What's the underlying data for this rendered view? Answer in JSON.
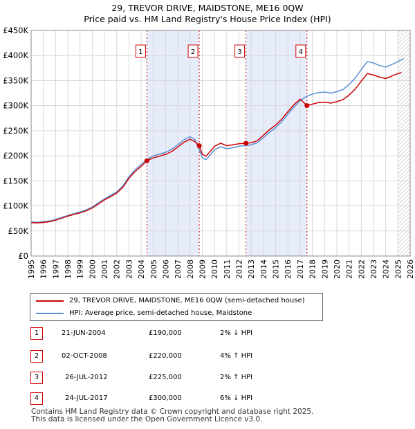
{
  "title_line1": "29, TREVOR DRIVE, MAIDSTONE, ME16 0QW",
  "title_line2": "Price paid vs. HM Land Registry's House Price Index (HPI)",
  "legend": {
    "property": "29, TREVOR DRIVE, MAIDSTONE, ME16 0QW (semi-detached house)",
    "hpi": "HPI: Average price, semi-detached house, Maidstone"
  },
  "colors": {
    "property": "#cc0000",
    "hpi": "#5b8fd6",
    "shade": "#e6ecfa",
    "grid": "#d8d8d8"
  },
  "transactions": [
    {
      "num": "1",
      "date": "21-JUN-2004",
      "price": "£190,000",
      "hpi": "2% ↓ HPI"
    },
    {
      "num": "2",
      "date": "02-OCT-2008",
      "price": "£220,000",
      "hpi": "4% ↑ HPI"
    },
    {
      "num": "3",
      "date": "26-JUL-2012",
      "price": "£225,000",
      "hpi": "2% ↑ HPI"
    },
    {
      "num": "4",
      "date": "24-JUL-2017",
      "price": "£300,000",
      "hpi": "6% ↓ HPI"
    }
  ],
  "footer_line1": "Contains HM Land Registry data © Crown copyright and database right 2025.",
  "footer_line2": "This data is licensed under the Open Government Licence v3.0.",
  "chart_data": {
    "type": "line",
    "xlim": [
      1995,
      2026
    ],
    "ylim": [
      0,
      450000
    ],
    "x_ticks": [
      "1995",
      "1996",
      "1997",
      "1998",
      "1999",
      "2000",
      "2001",
      "2002",
      "2003",
      "2004",
      "2005",
      "2006",
      "2007",
      "2008",
      "2009",
      "2010",
      "2011",
      "2012",
      "2013",
      "2014",
      "2015",
      "2016",
      "2017",
      "2018",
      "2019",
      "2020",
      "2021",
      "2022",
      "2023",
      "2024",
      "2025",
      "2026"
    ],
    "y_ticks": [
      {
        "value": 0,
        "label": "£0"
      },
      {
        "value": 50000,
        "label": "£50K"
      },
      {
        "value": 100000,
        "label": "£100K"
      },
      {
        "value": 150000,
        "label": "£150K"
      },
      {
        "value": 200000,
        "label": "£200K"
      },
      {
        "value": 250000,
        "label": "£250K"
      },
      {
        "value": 300000,
        "label": "£300K"
      },
      {
        "value": 350000,
        "label": "£350K"
      },
      {
        "value": 400000,
        "label": "£400K"
      },
      {
        "value": 450000,
        "label": "£450K"
      }
    ],
    "shaded_ranges": [
      [
        2004.47,
        2008.75
      ],
      [
        2012.57,
        2017.56
      ]
    ],
    "forecast_start": 2025.0,
    "sales": [
      {
        "num": "1",
        "x": 2004.47,
        "price": 190000
      },
      {
        "num": "2",
        "x": 2008.75,
        "price": 220000
      },
      {
        "num": "3",
        "x": 2012.57,
        "price": 225000
      },
      {
        "num": "4",
        "x": 2017.56,
        "price": 300000
      }
    ],
    "series": [
      {
        "name": "HPI: Average price, semi-detached house, Maidstone",
        "color": "#5b8fd6",
        "points": [
          [
            1995.0,
            68000
          ],
          [
            1995.5,
            67500
          ],
          [
            1996.0,
            68500
          ],
          [
            1996.5,
            70000
          ],
          [
            1997.0,
            73000
          ],
          [
            1997.5,
            77000
          ],
          [
            1998.0,
            81000
          ],
          [
            1998.5,
            84500
          ],
          [
            1999.0,
            88000
          ],
          [
            1999.5,
            92000
          ],
          [
            2000.0,
            98000
          ],
          [
            2000.5,
            106000
          ],
          [
            2001.0,
            114000
          ],
          [
            2001.5,
            121000
          ],
          [
            2002.0,
            128000
          ],
          [
            2002.5,
            140000
          ],
          [
            2003.0,
            158000
          ],
          [
            2003.5,
            172000
          ],
          [
            2004.0,
            183000
          ],
          [
            2004.5,
            193000
          ],
          [
            2005.0,
            200000
          ],
          [
            2005.5,
            203000
          ],
          [
            2006.0,
            207000
          ],
          [
            2006.5,
            213000
          ],
          [
            2007.0,
            222000
          ],
          [
            2007.5,
            232000
          ],
          [
            2008.0,
            238000
          ],
          [
            2008.4,
            232000
          ],
          [
            2008.75,
            212000
          ],
          [
            2009.0,
            196000
          ],
          [
            2009.3,
            192000
          ],
          [
            2009.7,
            203000
          ],
          [
            2010.0,
            212000
          ],
          [
            2010.5,
            218000
          ],
          [
            2011.0,
            214000
          ],
          [
            2011.5,
            216000
          ],
          [
            2012.0,
            219000
          ],
          [
            2012.5,
            220000
          ],
          [
            2013.0,
            222000
          ],
          [
            2013.5,
            226000
          ],
          [
            2014.0,
            236000
          ],
          [
            2014.5,
            247000
          ],
          [
            2015.0,
            256000
          ],
          [
            2015.5,
            268000
          ],
          [
            2016.0,
            283000
          ],
          [
            2016.5,
            297000
          ],
          [
            2017.0,
            310000
          ],
          [
            2017.5,
            318000
          ],
          [
            2018.0,
            323000
          ],
          [
            2018.5,
            326000
          ],
          [
            2019.0,
            327000
          ],
          [
            2019.5,
            325000
          ],
          [
            2020.0,
            328000
          ],
          [
            2020.5,
            332000
          ],
          [
            2021.0,
            342000
          ],
          [
            2021.5,
            355000
          ],
          [
            2022.0,
            372000
          ],
          [
            2022.5,
            388000
          ],
          [
            2023.0,
            385000
          ],
          [
            2023.5,
            380000
          ],
          [
            2024.0,
            377000
          ],
          [
            2024.5,
            382000
          ],
          [
            2025.0,
            388000
          ],
          [
            2025.5,
            394000
          ]
        ]
      },
      {
        "name": "29, TREVOR DRIVE, MAIDSTONE, ME16 0QW (semi-detached house)",
        "color": "#cc0000",
        "points": [
          [
            1995.0,
            66500
          ],
          [
            1995.5,
            66000
          ],
          [
            1996.0,
            67000
          ],
          [
            1996.5,
            68500
          ],
          [
            1997.0,
            71500
          ],
          [
            1997.5,
            75500
          ],
          [
            1998.0,
            79500
          ],
          [
            1998.5,
            83000
          ],
          [
            1999.0,
            86000
          ],
          [
            1999.5,
            90000
          ],
          [
            2000.0,
            96000
          ],
          [
            2000.5,
            104000
          ],
          [
            2001.0,
            112000
          ],
          [
            2001.5,
            118500
          ],
          [
            2002.0,
            125500
          ],
          [
            2002.5,
            137000
          ],
          [
            2003.0,
            155000
          ],
          [
            2003.5,
            168500
          ],
          [
            2004.0,
            179000
          ],
          [
            2004.47,
            190000
          ],
          [
            2005.0,
            196000
          ],
          [
            2005.5,
            199000
          ],
          [
            2006.0,
            203000
          ],
          [
            2006.5,
            208500
          ],
          [
            2007.0,
            217500
          ],
          [
            2007.5,
            227000
          ],
          [
            2008.0,
            233000
          ],
          [
            2008.4,
            228000
          ],
          [
            2008.75,
            220000
          ],
          [
            2009.0,
            203000
          ],
          [
            2009.3,
            199000
          ],
          [
            2009.7,
            210000
          ],
          [
            2010.0,
            219000
          ],
          [
            2010.5,
            225000
          ],
          [
            2011.0,
            220000
          ],
          [
            2011.5,
            222000
          ],
          [
            2012.0,
            224000
          ],
          [
            2012.57,
            225000
          ],
          [
            2013.0,
            226000
          ],
          [
            2013.5,
            230000
          ],
          [
            2014.0,
            241000
          ],
          [
            2014.5,
            252000
          ],
          [
            2015.0,
            261000
          ],
          [
            2015.5,
            273000
          ],
          [
            2016.0,
            288000
          ],
          [
            2016.5,
            302000
          ],
          [
            2017.0,
            313000
          ],
          [
            2017.56,
            300000
          ],
          [
            2018.0,
            303000
          ],
          [
            2018.5,
            306000
          ],
          [
            2019.0,
            307000
          ],
          [
            2019.5,
            305000
          ],
          [
            2020.0,
            308000
          ],
          [
            2020.5,
            312000
          ],
          [
            2021.0,
            321000
          ],
          [
            2021.5,
            333000
          ],
          [
            2022.0,
            349000
          ],
          [
            2022.5,
            364000
          ],
          [
            2023.0,
            361000
          ],
          [
            2023.5,
            357000
          ],
          [
            2024.0,
            354000
          ],
          [
            2024.5,
            359000
          ],
          [
            2025.0,
            364000
          ],
          [
            2025.3,
            366000
          ]
        ]
      }
    ]
  }
}
